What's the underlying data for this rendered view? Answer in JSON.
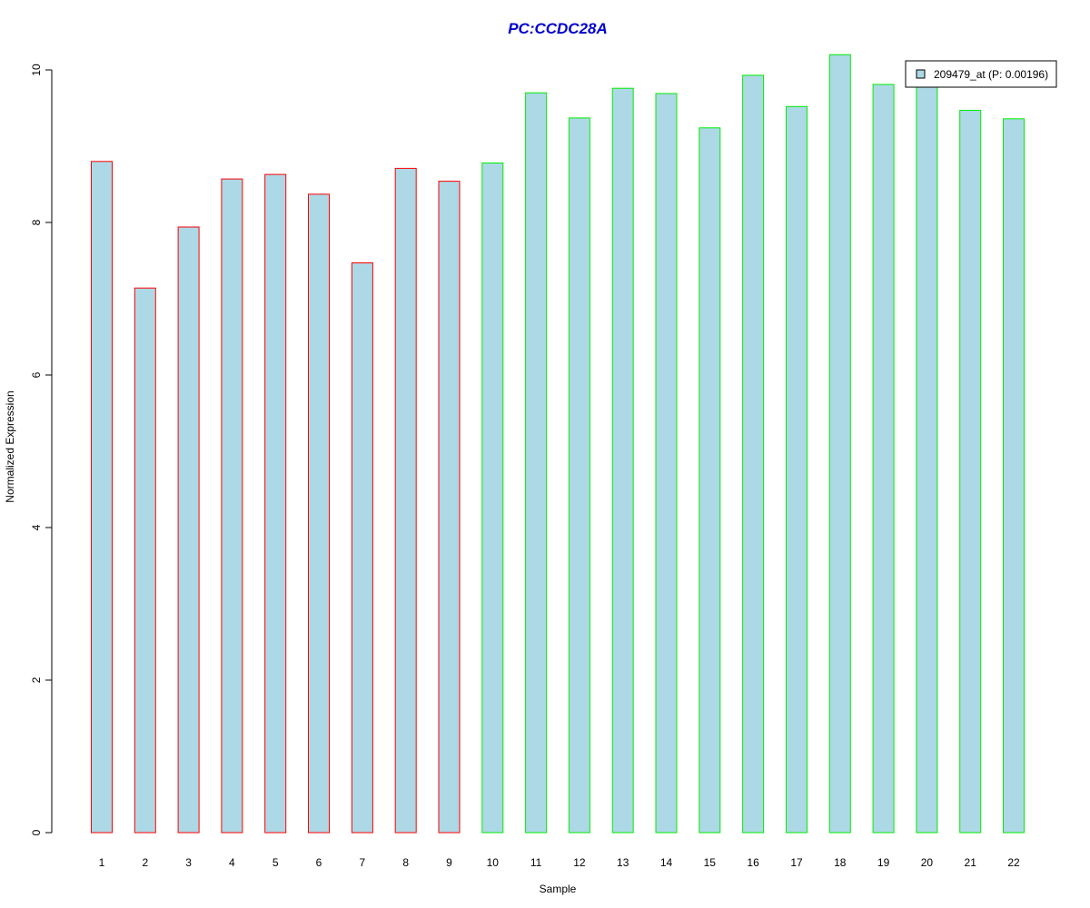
{
  "chart_data": {
    "type": "bar",
    "title": "PC:CCDC28A",
    "xlabel": "Sample",
    "ylabel": "Normalized Expression",
    "ylim": [
      0,
      10.2
    ],
    "yticks": [
      0,
      2,
      4,
      6,
      8,
      10
    ],
    "categories": [
      "1",
      "2",
      "3",
      "4",
      "5",
      "6",
      "7",
      "8",
      "9",
      "10",
      "11",
      "12",
      "13",
      "14",
      "15",
      "16",
      "17",
      "18",
      "19",
      "20",
      "21",
      "22"
    ],
    "series": [
      {
        "name": "209479_at (P: 0.00196)",
        "values": [
          8.8,
          7.14,
          7.94,
          8.57,
          8.63,
          8.37,
          7.47,
          8.71,
          8.54,
          8.78,
          9.7,
          9.37,
          9.76,
          9.69,
          9.24,
          9.93,
          9.52,
          10.2,
          9.81,
          9.8,
          9.47,
          9.36
        ]
      }
    ],
    "bar_fill": "#add8e6",
    "bar_border_colors": [
      "#ff0000",
      "#ff0000",
      "#ff0000",
      "#ff0000",
      "#ff0000",
      "#ff0000",
      "#ff0000",
      "#ff0000",
      "#ff0000",
      "#00ee00",
      "#00ee00",
      "#00ee00",
      "#00ee00",
      "#00ee00",
      "#00ee00",
      "#00ee00",
      "#00ee00",
      "#00ee00",
      "#00ee00",
      "#00ee00",
      "#00ee00",
      "#00ee00"
    ],
    "title_color": "#0000cc",
    "legend_position": "top-right",
    "grid": false
  }
}
